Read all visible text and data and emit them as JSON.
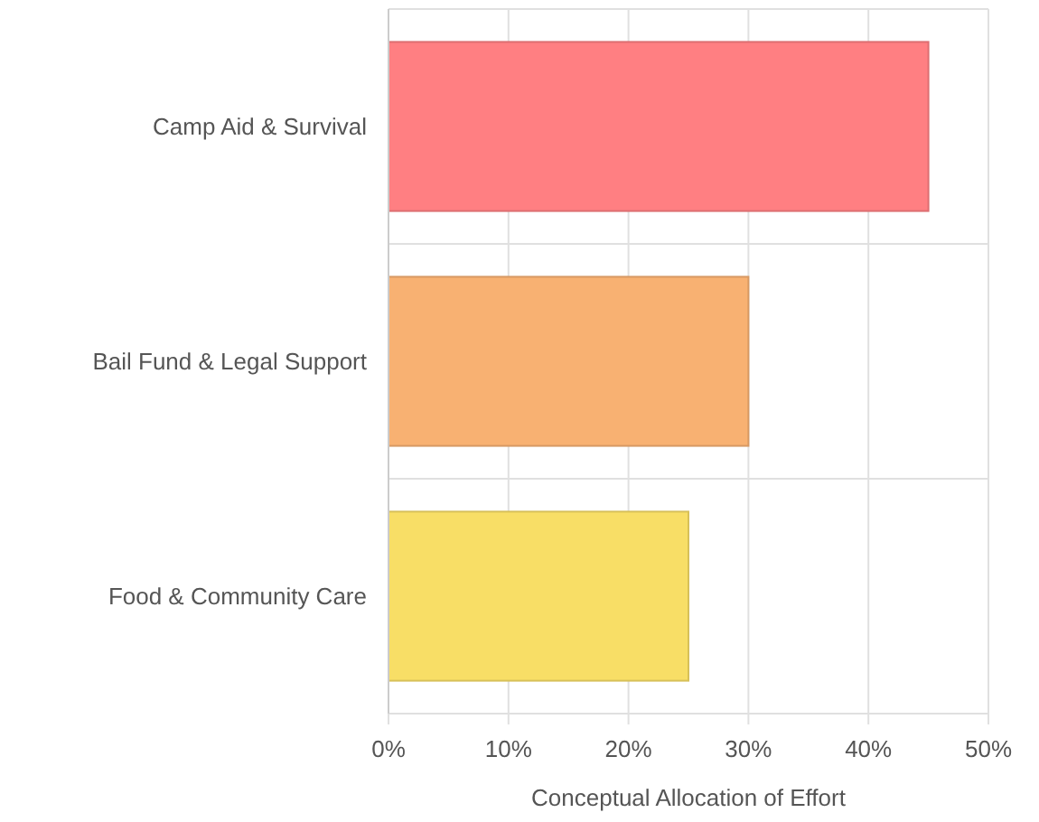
{
  "chart_data": {
    "type": "bar",
    "orientation": "horizontal",
    "xlabel": "Conceptual Allocation of Effort",
    "categories": [
      "Camp Aid & Survival",
      "Bail Fund & Legal Support",
      "Food & Community Care"
    ],
    "values": [
      45,
      30,
      25
    ],
    "colors": [
      "#ff7f82",
      "#f8b172",
      "#f8de66"
    ],
    "xlim": [
      0,
      50
    ],
    "xticks": [
      {
        "value": 0,
        "label": "0%"
      },
      {
        "value": 10,
        "label": "10%"
      },
      {
        "value": 20,
        "label": "20%"
      },
      {
        "value": 30,
        "label": "30%"
      },
      {
        "value": 40,
        "label": "40%"
      },
      {
        "value": 50,
        "label": "50%"
      }
    ],
    "grid": true
  }
}
